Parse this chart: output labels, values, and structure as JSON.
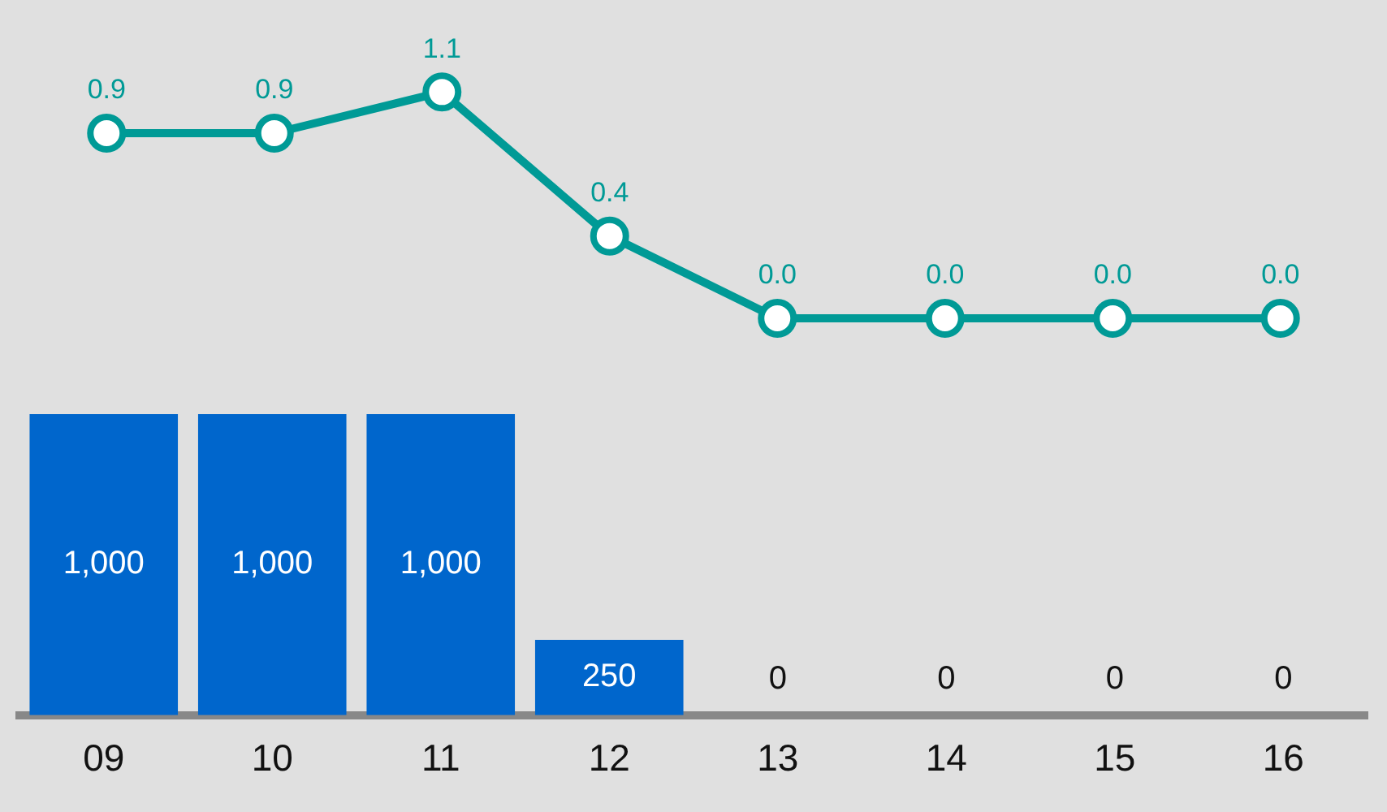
{
  "chart_data": [
    {
      "type": "line",
      "categories": [
        "09",
        "10",
        "11",
        "12",
        "13",
        "14",
        "15",
        "16"
      ],
      "series": [
        {
          "color": "#009a96",
          "values": [
            0.9,
            0.9,
            1.1,
            0.4,
            0,
            0,
            0,
            0
          ],
          "value_labels": [
            "0.9",
            "0.9",
            "1.1",
            "0.4",
            "0.0",
            "0.0",
            "0.0",
            "0.0"
          ]
        }
      ],
      "tick_labels": false,
      "legend": false,
      "grid": false,
      "marker": "circle",
      "line_style": "solid"
    },
    {
      "type": "bar",
      "categories": [
        "09",
        "10",
        "11",
        "12",
        "13",
        "14",
        "15",
        "16"
      ],
      "series": [
        {
          "color": "#0066cc",
          "values": [
            1000,
            1000,
            1000,
            250,
            0,
            0,
            0,
            0
          ],
          "value_labels": [
            "1,000",
            "1,000",
            "1,000",
            "250",
            "0",
            "0",
            "0",
            "0"
          ]
        }
      ],
      "tick_labels": "x",
      "legend": false,
      "grid": false
    }
  ]
}
